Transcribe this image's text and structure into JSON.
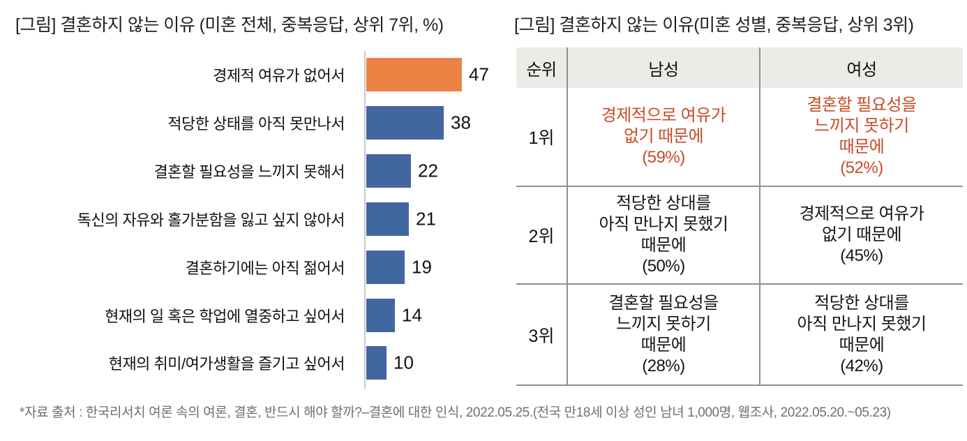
{
  "colors": {
    "bar_highlight": "#EE8245",
    "bar_default": "#4267A0",
    "table_highlight_text": "#C74B27"
  },
  "page": {
    "footnote": "*자료 출처 : 한국리서치 여론 속의 여론, 결혼, 반드시 해야 할까?–결혼에 대한 인식, 2022.05.25.(전국 만18세 이상 성인 남녀 1,000명, 웹조사, 2022.05.20.~05.23)"
  },
  "chart_data": [
    {
      "type": "bar",
      "orientation": "horizontal",
      "title": "[그림] 결혼하지 않는 이유 (미혼 전체, 중복응답, 상위 7위, %)",
      "categories": [
        "경제적 여유가 없어서",
        "적당한 상태를 아직 못만나서",
        "결혼할 필요성을 느끼지 못해서",
        "독신의 자유와 홀가분함을 잃고 싶지 않아서",
        "결혼하기에는 아직 젊어서",
        "현재의 일 혹은 학업에 열중하고 싶어서",
        "현재의 취미/여가생활을 즐기고 싶어서"
      ],
      "values": [
        47,
        38,
        22,
        21,
        19,
        14,
        10
      ],
      "highlight_index": 0,
      "xlabel": "",
      "ylabel": "",
      "xlim": [
        0,
        50
      ],
      "grid": false,
      "legend": false,
      "data_labels": true
    },
    {
      "type": "table",
      "title": "[그림] 결혼하지 않는 이유(미혼 성별, 중복응답, 상위 3위)",
      "columns": [
        "순위",
        "남성",
        "여성"
      ],
      "rows": [
        {
          "rank": "1위",
          "male": "경제적으로 여유가\n없기 때문에\n(59%)",
          "female": "결혼할 필요성을\n느끼지 못하기\n때문에\n(52%)",
          "highlight": true
        },
        {
          "rank": "2위",
          "male": "적당한 상대를\n아직 만나지 못했기\n때문에\n(50%)",
          "female": "경제적으로 여유가\n없기 때문에\n(45%)",
          "highlight": false
        },
        {
          "rank": "3위",
          "male": "결혼할 필요성을\n느끼지 못하기\n때문에\n(28%)",
          "female": "적당한 상대를\n아직 만나지 못했기\n때문에\n(42%)",
          "highlight": false
        }
      ]
    }
  ]
}
